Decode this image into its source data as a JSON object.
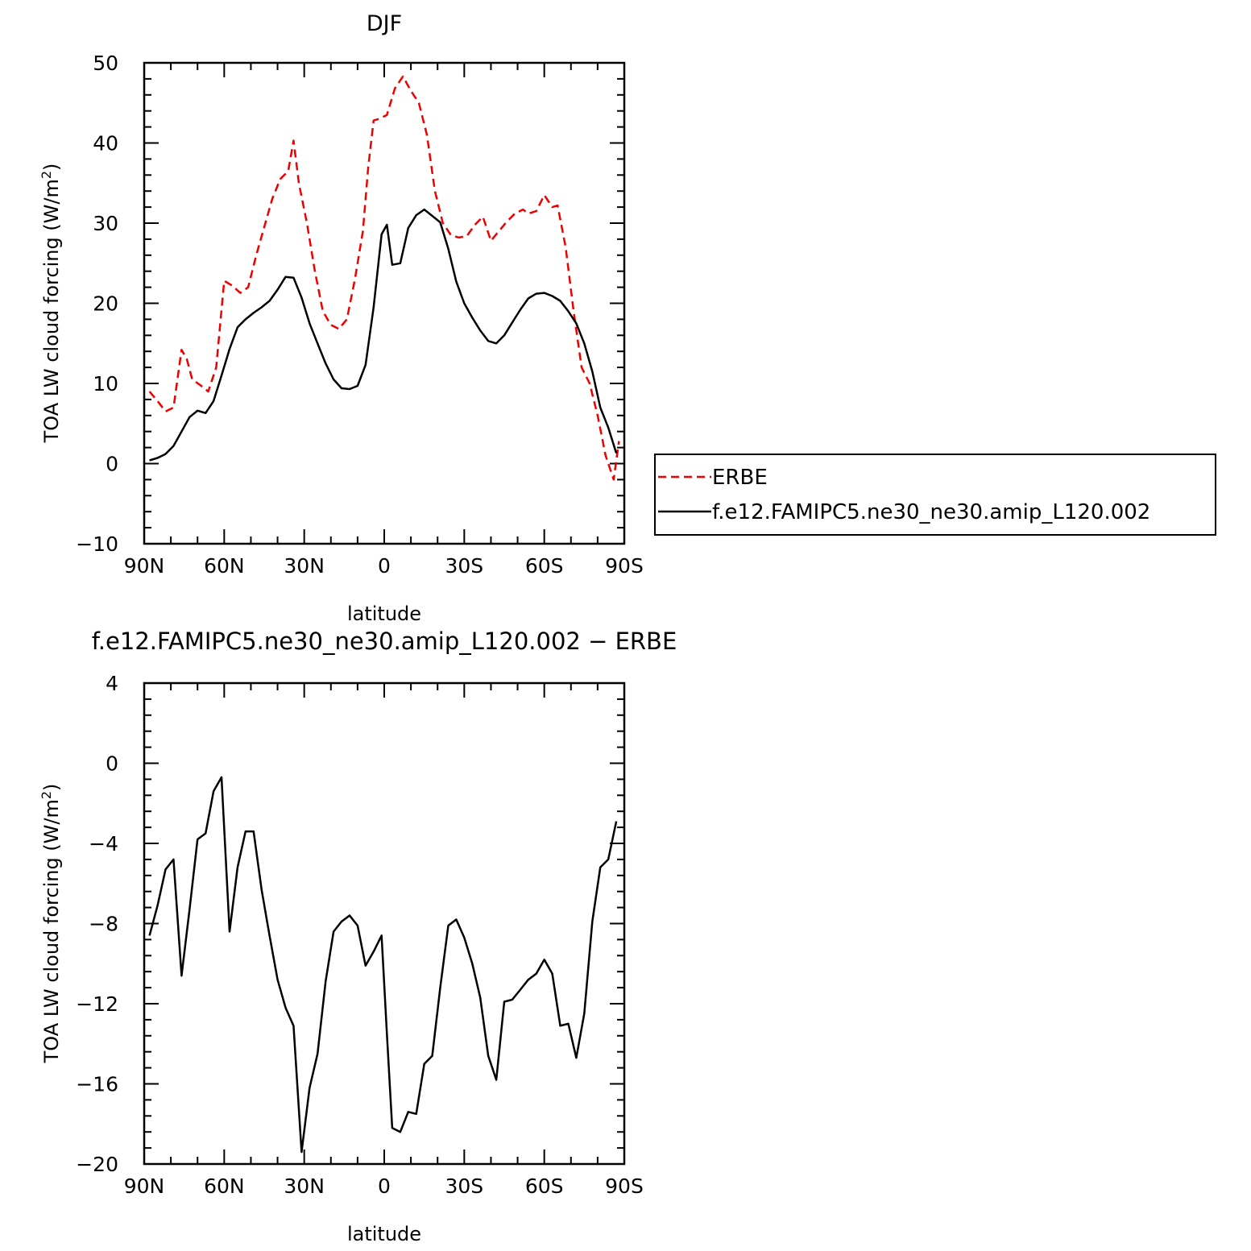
{
  "colors": {
    "erbe": "#ee0000",
    "model": "#000000",
    "axis": "#000000"
  },
  "chart_data": [
    {
      "type": "line",
      "title": "DJF",
      "xlabel": "latitude",
      "ylabel": "TOA LW cloud forcing (W/m",
      "ylabel_sup": "2",
      "ylabel_end": ")",
      "xlim": [
        90,
        -90
      ],
      "ylim": [
        -10,
        50
      ],
      "xticks": [
        90,
        60,
        30,
        0,
        -30,
        -60,
        -90
      ],
      "xtick_labels": [
        "90N",
        "60N",
        "30N",
        "0",
        "30S",
        "60S",
        "90S"
      ],
      "yticks": [
        -10,
        0,
        10,
        20,
        30,
        40,
        50
      ],
      "ytick_labels": [
        "−10",
        "0",
        "10",
        "20",
        "30",
        "40",
        "50"
      ],
      "legend": {
        "placement": "right",
        "entries": [
          "ERBE",
          "f.e12.FAMIPC5.ne30_ne30.amip_L120.002"
        ]
      },
      "series": [
        {
          "name": "ERBE",
          "style": "dashed",
          "color": "#ee0000",
          "x": [
            88,
            85,
            82,
            79,
            76,
            74,
            72,
            69,
            66,
            63,
            60,
            57,
            54,
            51,
            48,
            45,
            42,
            39,
            36,
            34,
            32,
            29,
            26,
            23,
            20,
            17,
            14,
            11,
            8,
            6,
            4,
            2,
            -1,
            -4,
            -7,
            -10,
            -13,
            -16,
            -19,
            -22,
            -25,
            -28,
            -31,
            -34,
            -37,
            -40,
            -43,
            -46,
            -49,
            -52,
            -54,
            -57,
            -60,
            -63,
            -65,
            -68,
            -71,
            -74,
            -77,
            -80,
            -83,
            -86,
            -88
          ],
          "y": [
            9,
            7.8,
            6.5,
            7,
            14.2,
            13,
            10.5,
            9.8,
            9,
            12,
            22.8,
            22.2,
            21.3,
            22,
            26,
            29.5,
            33,
            35.5,
            36.5,
            40.3,
            35,
            30,
            24,
            19,
            17.3,
            16.8,
            18,
            23,
            29,
            37,
            42.8,
            43,
            43.5,
            46.8,
            48.3,
            46.5,
            45,
            41,
            34,
            30,
            28.5,
            28.2,
            28.4,
            29.8,
            30.8,
            27.8,
            29,
            30.2,
            31.2,
            31.7,
            31.2,
            31.5,
            33.5,
            32,
            32.2,
            27,
            19,
            12,
            10,
            6,
            1,
            -2,
            2.8
          ]
        },
        {
          "name": "f.e12.FAMIPC5.ne30_ne30.amip_L120.002",
          "style": "solid",
          "color": "#000000",
          "x": [
            88,
            85,
            82,
            79,
            76,
            73,
            70,
            67,
            64,
            61,
            58,
            55,
            52,
            49,
            46,
            43,
            40,
            37,
            34,
            31,
            28,
            25,
            22,
            19,
            16,
            13,
            10,
            7,
            4,
            1,
            -1,
            -3,
            -6,
            -9,
            -12,
            -15,
            -18,
            -21,
            -24,
            -27,
            -30,
            -33,
            -36,
            -39,
            -42,
            -45,
            -48,
            -51,
            -54,
            -57,
            -60,
            -63,
            -66,
            -69,
            -72,
            -75,
            -78,
            -81,
            -84,
            -87
          ],
          "y": [
            0.4,
            0.7,
            1.2,
            2.2,
            4,
            5.8,
            6.6,
            6.3,
            7.8,
            11,
            14.3,
            17,
            18,
            18.8,
            19.5,
            20.3,
            21.7,
            23.3,
            23.2,
            20.7,
            17.5,
            15,
            12.5,
            10.5,
            9.4,
            9.3,
            9.7,
            12.3,
            19.5,
            28.6,
            29.8,
            24.8,
            25,
            29.4,
            31,
            31.7,
            30.9,
            30.1,
            26.8,
            22.7,
            20,
            18.2,
            16.6,
            15.3,
            15,
            16,
            17.6,
            19.2,
            20.6,
            21.2,
            21.3,
            20.9,
            20.3,
            19,
            17.5,
            15,
            11.5,
            7,
            4.5,
            1.3
          ]
        }
      ]
    },
    {
      "type": "line",
      "title": "f.e12.FAMIPC5.ne30_ne30.amip_L120.002 − ERBE",
      "xlabel": "latitude",
      "ylabel": "TOA LW cloud forcing (W/m",
      "ylabel_sup": "2",
      "ylabel_end": ")",
      "xlim": [
        90,
        -90
      ],
      "ylim": [
        -20,
        4
      ],
      "xticks": [
        90,
        60,
        30,
        0,
        -30,
        -60,
        -90
      ],
      "xtick_labels": [
        "90N",
        "60N",
        "30N",
        "0",
        "30S",
        "60S",
        "90S"
      ],
      "yticks": [
        -20,
        -16,
        -12,
        -8,
        -4,
        0,
        4
      ],
      "ytick_labels": [
        "−20",
        "−16",
        "−12",
        "−8",
        "−4",
        "0",
        "4"
      ],
      "series": [
        {
          "style": "solid",
          "color": "#000000",
          "x": [
            88,
            85,
            82,
            79,
            76,
            73,
            70,
            67,
            64,
            61,
            58,
            55,
            52,
            49,
            46,
            43,
            40,
            37,
            34,
            31,
            28,
            25,
            22,
            19,
            16,
            13,
            10,
            7,
            4,
            1,
            -1,
            -3,
            -6,
            -9,
            -12,
            -15,
            -18,
            -21,
            -24,
            -27,
            -30,
            -33,
            -36,
            -39,
            -42,
            -45,
            -48,
            -51,
            -54,
            -57,
            -60,
            -63,
            -66,
            -69,
            -72,
            -75,
            -78,
            -81,
            -84,
            -87
          ],
          "y": [
            -8.6,
            -7.1,
            -5.3,
            -4.8,
            -10.6,
            -7.3,
            -3.8,
            -3.5,
            -1.4,
            -0.7,
            -8.4,
            -5.2,
            -3.4,
            -3.4,
            -6.3,
            -8.6,
            -10.8,
            -12.2,
            -13.1,
            -19.4,
            -16.2,
            -14.5,
            -10.9,
            -8.4,
            -7.9,
            -7.6,
            -8.1,
            -10.1,
            -9.4,
            -8.6,
            -13.5,
            -18.2,
            -18.4,
            -17.4,
            -17.5,
            -15,
            -14.6,
            -11.2,
            -8.1,
            -7.8,
            -8.7,
            -10,
            -11.7,
            -14.6,
            -15.8,
            -11.9,
            -11.8,
            -11.3,
            -10.8,
            -10.5,
            -9.8,
            -10.5,
            -13.1,
            -13,
            -14.7,
            -12.5,
            -7.9,
            -5.2,
            -4.8,
            -2.9
          ]
        }
      ]
    }
  ]
}
